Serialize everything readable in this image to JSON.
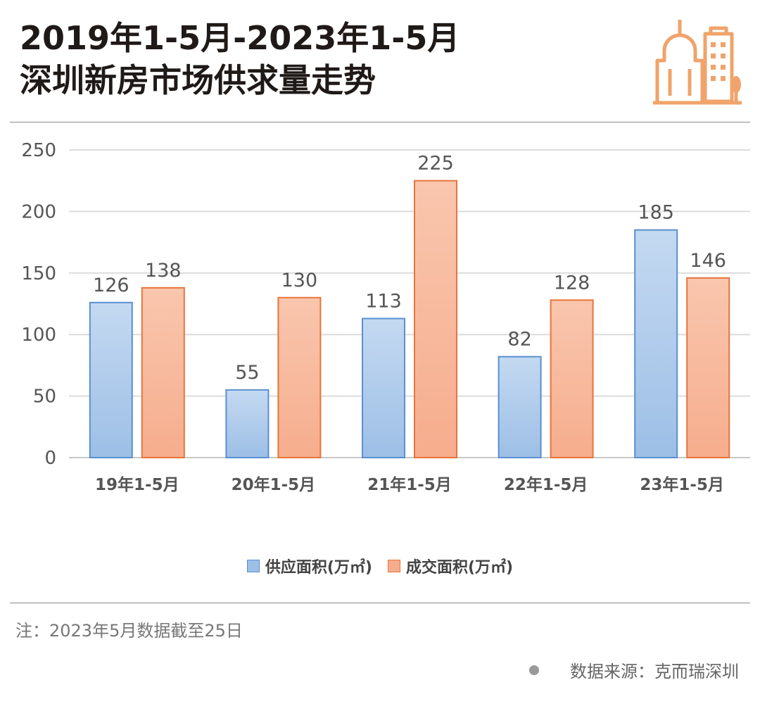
{
  "header": {
    "title_line1": "2019年1-5月-2023年1-5月",
    "title_line2": "深圳新房市场供求量走势"
  },
  "colors": {
    "supply": "#9dbfe6",
    "supply_border": "#5b8fd0",
    "deal": "#f6ad8d",
    "deal_border": "#e8743b",
    "logo": "#f0a36a"
  },
  "chart_data": {
    "type": "bar",
    "categories": [
      "19年1-5月",
      "20年1-5月",
      "21年1-5月",
      "22年1-5月",
      "23年1-5月"
    ],
    "series": [
      {
        "name": "供应面积(万㎡)",
        "values": [
          126,
          55,
          113,
          82,
          185
        ]
      },
      {
        "name": "成交面积(万㎡)",
        "values": [
          138,
          130,
          225,
          128,
          146
        ]
      }
    ],
    "ylim": [
      0,
      250
    ],
    "yticks": [
      0,
      50,
      100,
      150,
      200,
      250
    ],
    "grid": true,
    "legend_position": "bottom",
    "data_labels": true
  },
  "footer": {
    "note": "注：2023年5月数据截至25日",
    "source": "数据来源：克而瑞深圳"
  }
}
